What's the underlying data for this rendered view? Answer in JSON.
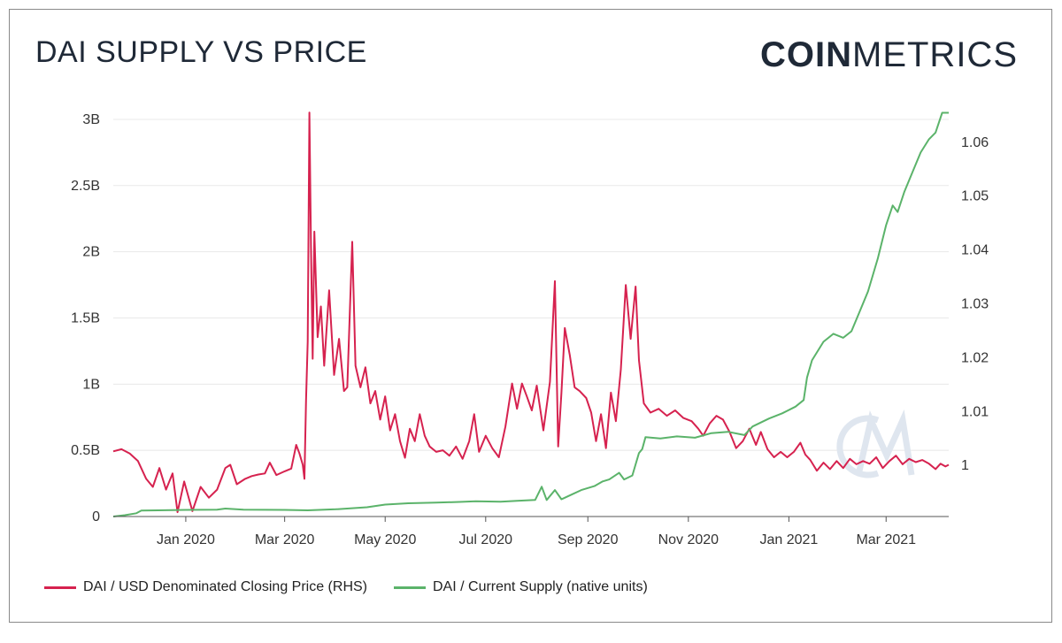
{
  "header": {
    "title": "DAI SUPPLY VS PRICE",
    "logo_bold": "COIN",
    "logo_light": "METRICS"
  },
  "colors": {
    "price": "#d6224f",
    "supply": "#5bb36a",
    "grid": "#e8e8e8",
    "axis": "#555555",
    "watermark": "#dfe6ef"
  },
  "chart_data": {
    "type": "line",
    "title": "DAI SUPPLY VS PRICE",
    "x_ticks": [
      "Jan 2020",
      "Mar 2020",
      "May 2020",
      "Jul 2020",
      "Sep 2020",
      "Nov 2020",
      "Jan 2021",
      "Mar 2021"
    ],
    "y_left_ticks": [
      "0",
      "0.5B",
      "1B",
      "1.5B",
      "2B",
      "2.5B",
      "3B"
    ],
    "y_left_range": [
      0,
      3100000000
    ],
    "y_right_ticks": [
      "1",
      "1.01",
      "1.02",
      "1.03",
      "1.04",
      "1.05",
      "1.06"
    ],
    "y_right_range": [
      0.9905,
      1.0667
    ],
    "x_range": [
      "2019-11-18",
      "2021-04-08"
    ],
    "grid": true,
    "legend_position": "bottom-left",
    "series": [
      {
        "name": "DAI / USD Denominated Closing Price (RHS)",
        "axis": "right",
        "points": [
          [
            "2019-11-18",
            1.0026
          ],
          [
            "2019-11-23",
            1.003
          ],
          [
            "2019-11-28",
            1.0022
          ],
          [
            "2019-12-03",
            1.0008
          ],
          [
            "2019-12-08",
            0.9975
          ],
          [
            "2019-12-12",
            0.996
          ],
          [
            "2019-12-16",
            0.9995
          ],
          [
            "2019-12-20",
            0.9955
          ],
          [
            "2019-12-24",
            0.9985
          ],
          [
            "2019-12-27",
            0.9913
          ],
          [
            "2019-12-31",
            0.997
          ],
          [
            "2020-01-05",
            0.9915
          ],
          [
            "2020-01-10",
            0.996
          ],
          [
            "2020-01-15",
            0.994
          ],
          [
            "2020-01-20",
            0.9955
          ],
          [
            "2020-01-25",
            0.9995
          ],
          [
            "2020-01-28",
            1.0001
          ],
          [
            "2020-02-01",
            0.9965
          ],
          [
            "2020-02-06",
            0.9975
          ],
          [
            "2020-02-10",
            0.998
          ],
          [
            "2020-02-14",
            0.9983
          ],
          [
            "2020-02-18",
            0.9985
          ],
          [
            "2020-02-21",
            1.0005
          ],
          [
            "2020-02-25",
            0.9982
          ],
          [
            "2020-03-01",
            0.9989
          ],
          [
            "2020-03-05",
            0.9994
          ],
          [
            "2020-03-08",
            1.0038
          ],
          [
            "2020-03-10",
            1.0022
          ],
          [
            "2020-03-12",
            1.0001
          ],
          [
            "2020-03-13",
            0.9975
          ],
          [
            "2020-03-14",
            1.012
          ],
          [
            "2020-03-15",
            1.023
          ],
          [
            "2020-03-16",
            1.0655
          ],
          [
            "2020-03-17",
            1.0405
          ],
          [
            "2020-03-18",
            1.0198
          ],
          [
            "2020-03-19",
            1.0434
          ],
          [
            "2020-03-21",
            1.0238
          ],
          [
            "2020-03-23",
            1.0295
          ],
          [
            "2020-03-25",
            1.0185
          ],
          [
            "2020-03-28",
            1.0325
          ],
          [
            "2020-03-31",
            1.0168
          ],
          [
            "2020-04-03",
            1.0235
          ],
          [
            "2020-04-06",
            1.0138
          ],
          [
            "2020-04-08",
            1.0145
          ],
          [
            "2020-04-11",
            1.0415
          ],
          [
            "2020-04-13",
            1.0185
          ],
          [
            "2020-04-16",
            1.0145
          ],
          [
            "2020-04-19",
            1.0182
          ],
          [
            "2020-04-22",
            1.0115
          ],
          [
            "2020-04-25",
            1.0138
          ],
          [
            "2020-04-28",
            1.0085
          ],
          [
            "2020-05-01",
            1.0128
          ],
          [
            "2020-05-04",
            1.0065
          ],
          [
            "2020-05-07",
            1.0095
          ],
          [
            "2020-05-10",
            1.0045
          ],
          [
            "2020-05-13",
            1.0014
          ],
          [
            "2020-05-16",
            1.0068
          ],
          [
            "2020-05-19",
            1.0045
          ],
          [
            "2020-05-22",
            1.0095
          ],
          [
            "2020-05-25",
            1.0055
          ],
          [
            "2020-05-28",
            1.0035
          ],
          [
            "2020-06-01",
            1.0025
          ],
          [
            "2020-06-05",
            1.0028
          ],
          [
            "2020-06-09",
            1.0018
          ],
          [
            "2020-06-13",
            1.0035
          ],
          [
            "2020-06-17",
            1.0012
          ],
          [
            "2020-06-21",
            1.0045
          ],
          [
            "2020-06-24",
            1.0095
          ],
          [
            "2020-06-27",
            1.0025
          ],
          [
            "2020-07-01",
            1.0055
          ],
          [
            "2020-07-05",
            1.0032
          ],
          [
            "2020-07-09",
            1.0015
          ],
          [
            "2020-07-13",
            1.0072
          ],
          [
            "2020-07-17",
            1.0152
          ],
          [
            "2020-07-20",
            1.0105
          ],
          [
            "2020-07-23",
            1.0152
          ],
          [
            "2020-07-26",
            1.0128
          ],
          [
            "2020-07-29",
            1.0102
          ],
          [
            "2020-08-01",
            1.0148
          ],
          [
            "2020-08-05",
            1.0065
          ],
          [
            "2020-08-09",
            1.0155
          ],
          [
            "2020-08-12",
            1.0342
          ],
          [
            "2020-08-14",
            1.0035
          ],
          [
            "2020-08-16",
            1.0135
          ],
          [
            "2020-08-18",
            1.0255
          ],
          [
            "2020-08-21",
            1.0205
          ],
          [
            "2020-08-24",
            1.0145
          ],
          [
            "2020-08-27",
            1.0138
          ],
          [
            "2020-08-31",
            1.0125
          ],
          [
            "2020-09-03",
            1.0098
          ],
          [
            "2020-09-06",
            1.0045
          ],
          [
            "2020-09-09",
            1.0095
          ],
          [
            "2020-09-12",
            1.0032
          ],
          [
            "2020-09-15",
            1.0135
          ],
          [
            "2020-09-18",
            1.0082
          ],
          [
            "2020-09-21",
            1.0178
          ],
          [
            "2020-09-24",
            1.0335
          ],
          [
            "2020-09-27",
            1.0235
          ],
          [
            "2020-09-30",
            1.0332
          ],
          [
            "2020-10-02",
            1.0195
          ],
          [
            "2020-10-05",
            1.0115
          ],
          [
            "2020-10-09",
            1.0098
          ],
          [
            "2020-10-14",
            1.0105
          ],
          [
            "2020-10-19",
            1.0092
          ],
          [
            "2020-10-24",
            1.0102
          ],
          [
            "2020-10-29",
            1.0088
          ],
          [
            "2020-11-03",
            1.0082
          ],
          [
            "2020-11-07",
            1.0068
          ],
          [
            "2020-11-10",
            1.0055
          ],
          [
            "2020-11-14",
            1.0078
          ],
          [
            "2020-11-18",
            1.0092
          ],
          [
            "2020-11-22",
            1.0085
          ],
          [
            "2020-11-26",
            1.0062
          ],
          [
            "2020-11-30",
            1.0032
          ],
          [
            "2020-12-04",
            1.0045
          ],
          [
            "2020-12-08",
            1.0068
          ],
          [
            "2020-12-12",
            1.0038
          ],
          [
            "2020-12-15",
            1.0062
          ],
          [
            "2020-12-19",
            1.003
          ],
          [
            "2020-12-23",
            1.0015
          ],
          [
            "2020-12-27",
            1.0025
          ],
          [
            "2020-12-31",
            1.0015
          ],
          [
            "2021-01-04",
            1.0025
          ],
          [
            "2021-01-08",
            1.0042
          ],
          [
            "2021-01-11",
            1.002
          ],
          [
            "2021-01-14",
            1.001
          ],
          [
            "2021-01-18",
            0.999
          ],
          [
            "2021-01-22",
            1.0005
          ],
          [
            "2021-01-26",
            0.9993
          ],
          [
            "2021-01-30",
            1.0008
          ],
          [
            "2021-02-03",
            0.9995
          ],
          [
            "2021-02-07",
            1.0012
          ],
          [
            "2021-02-11",
            1.0002
          ],
          [
            "2021-02-15",
            1.0008
          ],
          [
            "2021-02-19",
            1.0003
          ],
          [
            "2021-02-23",
            1.0015
          ],
          [
            "2021-02-27",
            0.9995
          ],
          [
            "2021-03-03",
            1.0008
          ],
          [
            "2021-03-07",
            1.0018
          ],
          [
            "2021-03-11",
            1.0002
          ],
          [
            "2021-03-15",
            1.0012
          ],
          [
            "2021-03-19",
            1.0006
          ],
          [
            "2021-03-23",
            1.001
          ],
          [
            "2021-03-27",
            1.0003
          ],
          [
            "2021-03-31",
            0.9993
          ],
          [
            "2021-04-03",
            1.0003
          ],
          [
            "2021-04-06",
            0.9998
          ],
          [
            "2021-04-08",
            1.0001
          ]
        ]
      },
      {
        "name": "DAI / Current Supply (native units)",
        "axis": "left",
        "points": [
          [
            "2019-11-18",
            0
          ],
          [
            "2019-11-25",
            10000000
          ],
          [
            "2019-12-02",
            25000000
          ],
          [
            "2019-12-05",
            45000000
          ],
          [
            "2019-12-15",
            47000000
          ],
          [
            "2020-01-01",
            50000000
          ],
          [
            "2020-01-20",
            52000000
          ],
          [
            "2020-01-25",
            60000000
          ],
          [
            "2020-02-05",
            52000000
          ],
          [
            "2020-03-01",
            50000000
          ],
          [
            "2020-03-15",
            47000000
          ],
          [
            "2020-04-01",
            55000000
          ],
          [
            "2020-04-20",
            70000000
          ],
          [
            "2020-05-01",
            90000000
          ],
          [
            "2020-05-15",
            100000000
          ],
          [
            "2020-06-01",
            105000000
          ],
          [
            "2020-06-15",
            110000000
          ],
          [
            "2020-06-25",
            115000000
          ],
          [
            "2020-07-10",
            112000000
          ],
          [
            "2020-07-20",
            118000000
          ],
          [
            "2020-07-31",
            125000000
          ],
          [
            "2020-08-04",
            225000000
          ],
          [
            "2020-08-07",
            125000000
          ],
          [
            "2020-08-12",
            200000000
          ],
          [
            "2020-08-16",
            130000000
          ],
          [
            "2020-08-22",
            165000000
          ],
          [
            "2020-08-28",
            200000000
          ],
          [
            "2020-09-05",
            230000000
          ],
          [
            "2020-09-10",
            265000000
          ],
          [
            "2020-09-14",
            280000000
          ],
          [
            "2020-09-20",
            330000000
          ],
          [
            "2020-09-23",
            280000000
          ],
          [
            "2020-09-28",
            310000000
          ],
          [
            "2020-10-02",
            480000000
          ],
          [
            "2020-10-04",
            510000000
          ],
          [
            "2020-10-06",
            600000000
          ],
          [
            "2020-10-15",
            590000000
          ],
          [
            "2020-10-25",
            605000000
          ],
          [
            "2020-11-05",
            595000000
          ],
          [
            "2020-11-15",
            630000000
          ],
          [
            "2020-11-25",
            640000000
          ],
          [
            "2020-12-05",
            615000000
          ],
          [
            "2020-12-10",
            680000000
          ],
          [
            "2020-12-20",
            740000000
          ],
          [
            "2020-12-28",
            780000000
          ],
          [
            "2021-01-05",
            830000000
          ],
          [
            "2021-01-10",
            880000000
          ],
          [
            "2021-01-12",
            1050000000
          ],
          [
            "2021-01-15",
            1180000000
          ],
          [
            "2021-01-22",
            1320000000
          ],
          [
            "2021-01-28",
            1380000000
          ],
          [
            "2021-02-03",
            1350000000
          ],
          [
            "2021-02-08",
            1400000000
          ],
          [
            "2021-02-13",
            1550000000
          ],
          [
            "2021-02-18",
            1700000000
          ],
          [
            "2021-02-24",
            1950000000
          ],
          [
            "2021-03-01",
            2200000000
          ],
          [
            "2021-03-05",
            2350000000
          ],
          [
            "2021-03-08",
            2300000000
          ],
          [
            "2021-03-12",
            2450000000
          ],
          [
            "2021-03-17",
            2600000000
          ],
          [
            "2021-03-22",
            2750000000
          ],
          [
            "2021-03-27",
            2850000000
          ],
          [
            "2021-03-31",
            2900000000
          ],
          [
            "2021-04-04",
            3050000000
          ],
          [
            "2021-04-08",
            3050000000
          ]
        ]
      }
    ]
  },
  "legend": {
    "price_label": "DAI / USD Denominated Closing Price (RHS)",
    "supply_label": "DAI / Current Supply (native units)"
  }
}
